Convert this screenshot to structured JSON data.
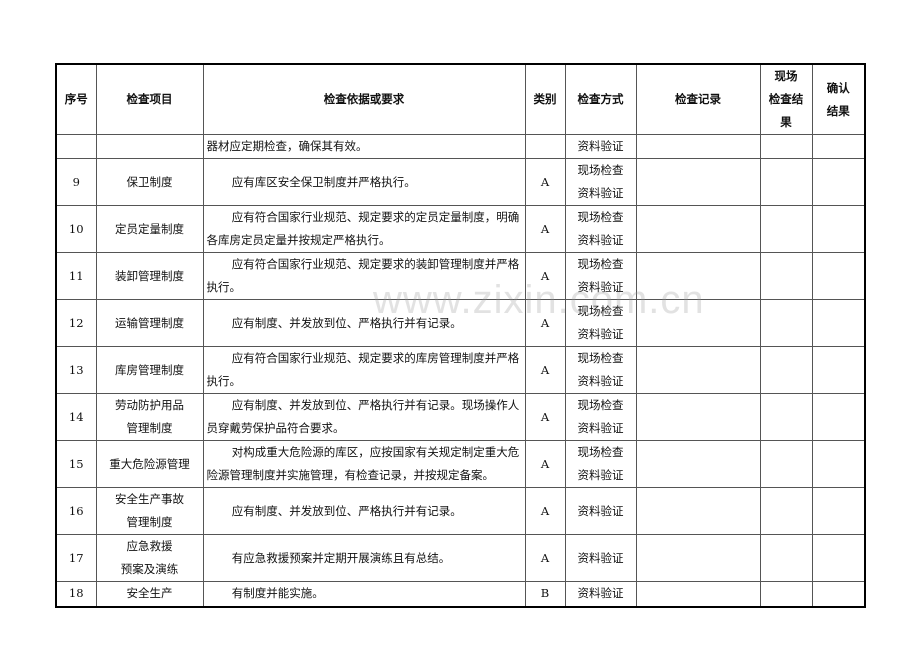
{
  "headers": {
    "no": "序号",
    "item": "检查项目",
    "req": "检查依据或要求",
    "cat": "类别",
    "method": "检查方式",
    "record": "检查记录",
    "result1": "现场",
    "result2": "检查结果",
    "confirm1": "确认",
    "confirm2": "结果"
  },
  "rows": [
    {
      "no": "",
      "item1": "",
      "item2": "",
      "req": "器材应定期检查，确保其有效。",
      "cat": "",
      "m1": "资料验证",
      "m2": ""
    },
    {
      "no": "9",
      "item1": "保卫制度",
      "item2": "",
      "req": "应有库区安全保卫制度并严格执行。",
      "cat": "A",
      "m1": "现场检查",
      "m2": "资料验证"
    },
    {
      "no": "10",
      "item1": "定员定量制度",
      "item2": "",
      "req": "应有符合国家行业规范、规定要求的定员定量制度，明确各库房定员定量并按规定严格执行。",
      "cat": "A",
      "m1": "现场检查",
      "m2": "资料验证"
    },
    {
      "no": "11",
      "item1": "装卸管理制度",
      "item2": "",
      "req": "应有符合国家行业规范、规定要求的装卸管理制度并严格执行。",
      "cat": "A",
      "m1": "现场检查",
      "m2": "资料验证"
    },
    {
      "no": "12",
      "item1": "运输管理制度",
      "item2": "",
      "req": "应有制度、并发放到位、严格执行并有记录。",
      "cat": "A",
      "m1": "现场检查",
      "m2": "资料验证"
    },
    {
      "no": "13",
      "item1": "库房管理制度",
      "item2": "",
      "req": "应有符合国家行业规范、规定要求的库房管理制度并严格执行。",
      "cat": "A",
      "m1": "现场检查",
      "m2": "资料验证"
    },
    {
      "no": "14",
      "item1": "劳动防护用品",
      "item2": "管理制度",
      "req": "应有制度、并发放到位、严格执行并有记录。现场操作人员穿戴劳保护品符合要求。",
      "cat": "A",
      "m1": "现场检查",
      "m2": "资料验证"
    },
    {
      "no": "15",
      "item1": "重大危险源管理",
      "item2": "",
      "req": "对构成重大危险源的库区，应按国家有关规定制定重大危险源管理制度并实施管理，有检查记录，并按规定备案。",
      "cat": "A",
      "m1": "现场检查",
      "m2": "资料验证"
    },
    {
      "no": "16",
      "item1": "安全生产事故",
      "item2": "管理制度",
      "req": "应有制度、并发放到位、严格执行并有记录。",
      "cat": "A",
      "m1": "资料验证",
      "m2": ""
    },
    {
      "no": "17",
      "item1": "应急救援",
      "item2": "预案及演练",
      "req": "有应急救援预案并定期开展演练且有总结。",
      "cat": "A",
      "m1": "资料验证",
      "m2": ""
    },
    {
      "no": "18",
      "item1": "安全生产",
      "item2": "",
      "req": "有制度并能实施。",
      "cat": "B",
      "m1": "资料验证",
      "m2": ""
    }
  ],
  "watermark": "www.zixin.com.cn"
}
